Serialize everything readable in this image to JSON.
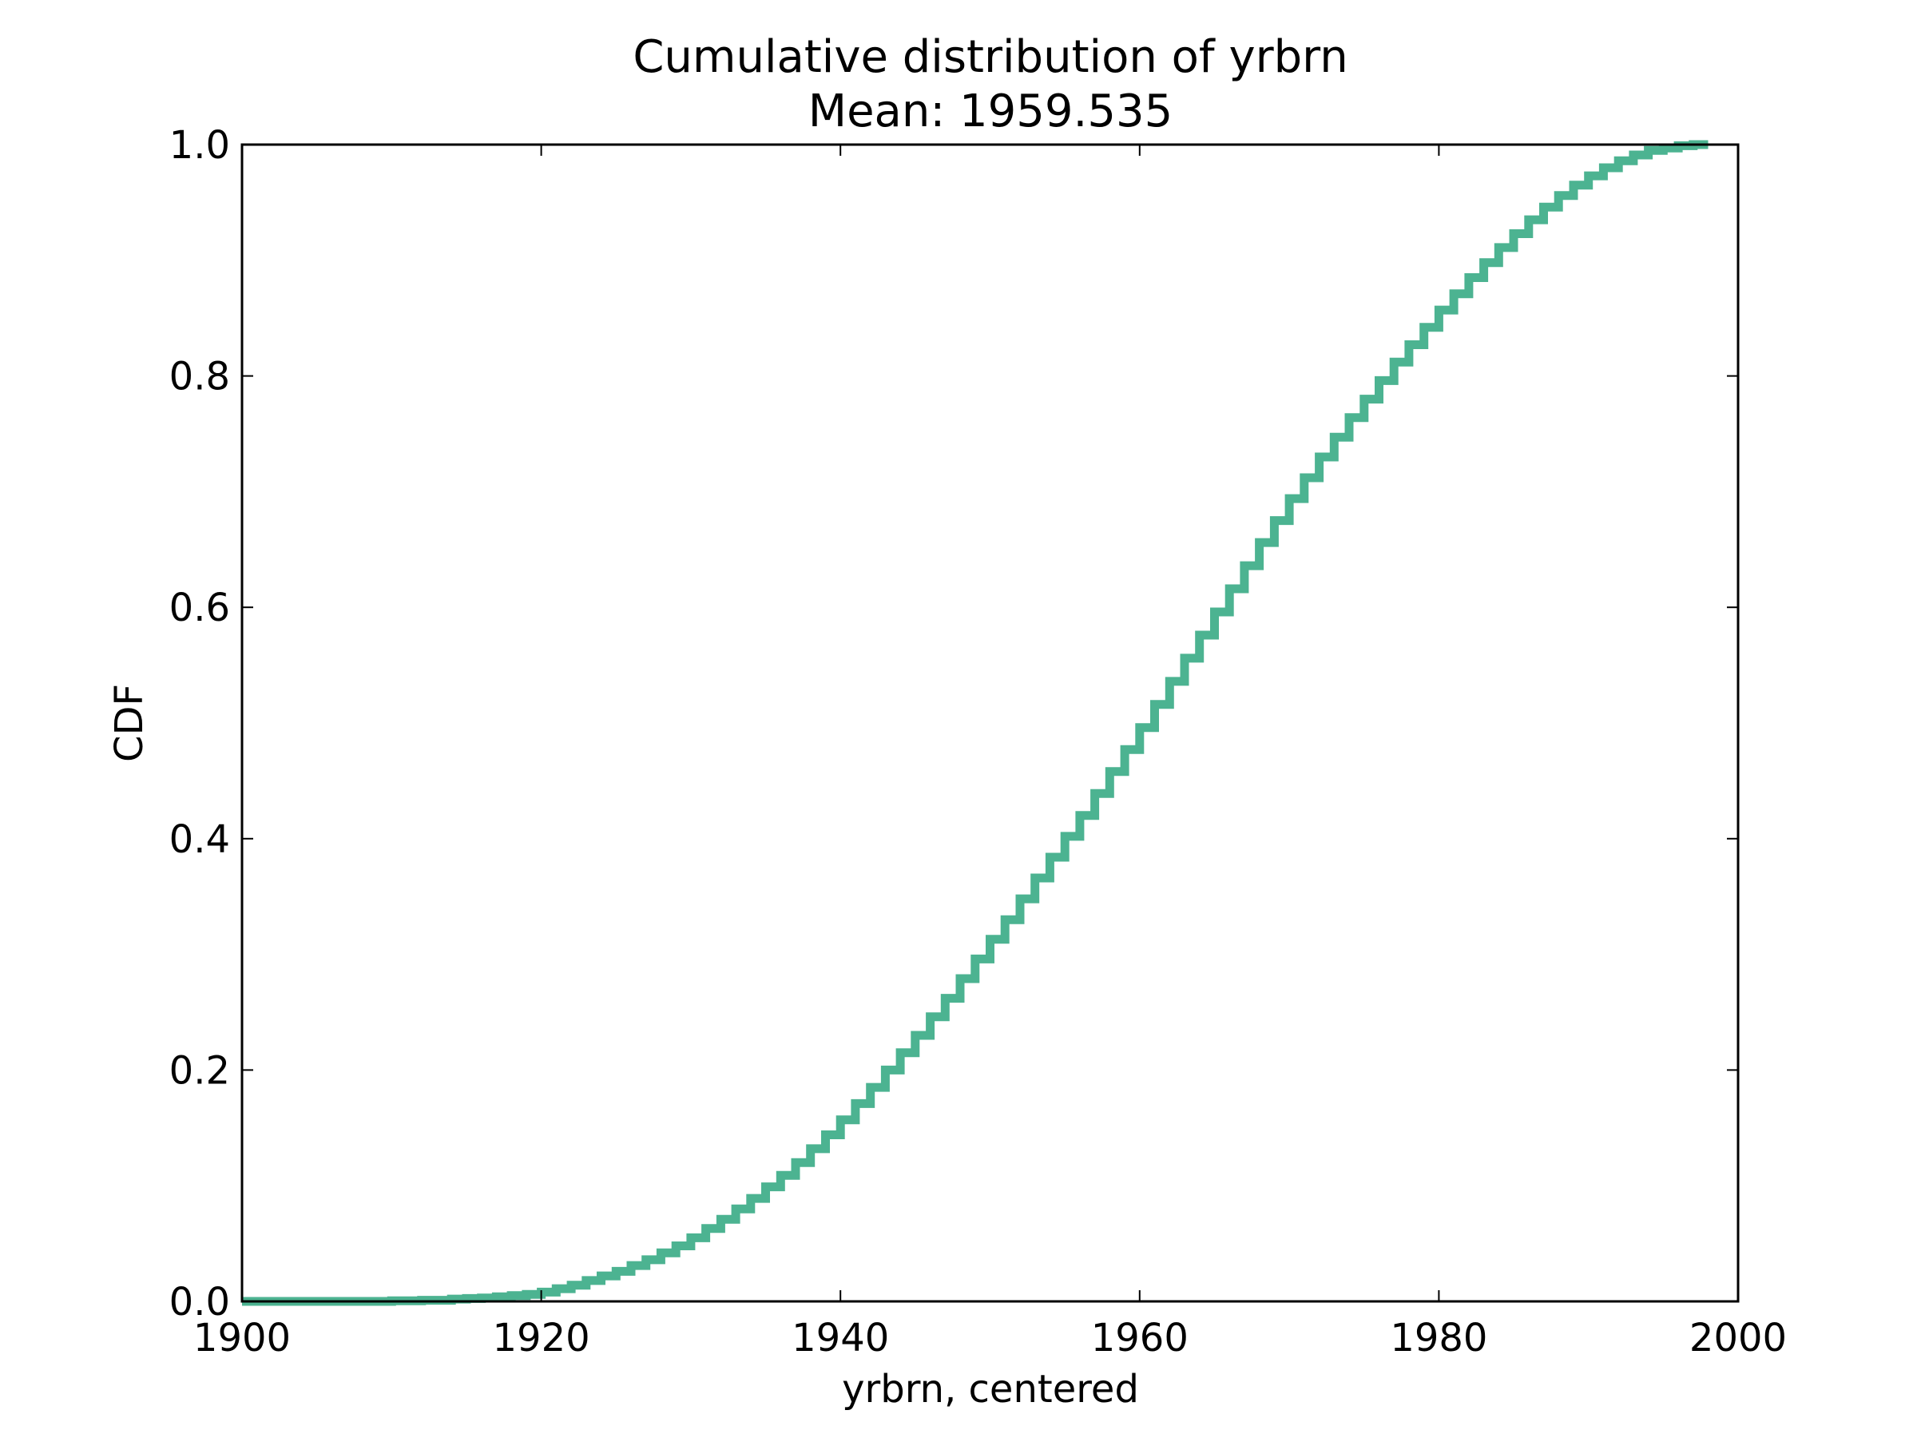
{
  "chart_data": {
    "type": "line",
    "step": true,
    "title": "Cumulative distribution of yrbrn",
    "subtitle": "Mean: 1959.535",
    "xlabel": "yrbrn, centered",
    "ylabel": "CDF",
    "xlim": [
      1900,
      2000
    ],
    "ylim": [
      0.0,
      1.0
    ],
    "xticks": [
      "1900",
      "1920",
      "1940",
      "1960",
      "1980",
      "2000"
    ],
    "yticks": [
      "0.0",
      "0.2",
      "0.4",
      "0.6",
      "0.8",
      "1.0"
    ],
    "grid": false,
    "legend": false,
    "series": [
      {
        "color": "#4cb391",
        "x": [
          1900,
          1905,
          1910,
          1912,
          1914,
          1915,
          1916,
          1917,
          1918,
          1919,
          1920,
          1921,
          1922,
          1923,
          1924,
          1925,
          1926,
          1927,
          1928,
          1929,
          1930,
          1931,
          1932,
          1933,
          1934,
          1935,
          1936,
          1937,
          1938,
          1939,
          1940,
          1941,
          1942,
          1943,
          1944,
          1945,
          1946,
          1947,
          1948,
          1949,
          1950,
          1951,
          1952,
          1953,
          1954,
          1955,
          1956,
          1957,
          1958,
          1959,
          1960,
          1961,
          1962,
          1963,
          1964,
          1965,
          1966,
          1967,
          1968,
          1969,
          1970,
          1971,
          1972,
          1973,
          1974,
          1975,
          1976,
          1977,
          1978,
          1979,
          1980,
          1981,
          1982,
          1983,
          1984,
          1985,
          1986,
          1987,
          1988,
          1989,
          1990,
          1991,
          1992,
          1993,
          1994,
          1995,
          1996,
          1997,
          1998
        ],
        "y": [
          0.0,
          0.0,
          0.0005,
          0.001,
          0.002,
          0.0025,
          0.003,
          0.004,
          0.005,
          0.006,
          0.008,
          0.011,
          0.014,
          0.018,
          0.022,
          0.026,
          0.031,
          0.036,
          0.042,
          0.048,
          0.055,
          0.063,
          0.071,
          0.08,
          0.089,
          0.099,
          0.109,
          0.12,
          0.132,
          0.144,
          0.157,
          0.171,
          0.185,
          0.2,
          0.215,
          0.23,
          0.246,
          0.262,
          0.279,
          0.296,
          0.313,
          0.33,
          0.348,
          0.366,
          0.384,
          0.402,
          0.42,
          0.439,
          0.458,
          0.477,
          0.496,
          0.516,
          0.536,
          0.556,
          0.576,
          0.596,
          0.616,
          0.636,
          0.656,
          0.675,
          0.694,
          0.712,
          0.73,
          0.747,
          0.764,
          0.78,
          0.796,
          0.812,
          0.827,
          0.842,
          0.857,
          0.871,
          0.885,
          0.898,
          0.911,
          0.923,
          0.935,
          0.946,
          0.956,
          0.965,
          0.973,
          0.98,
          0.986,
          0.991,
          0.995,
          0.997,
          0.999,
          1.0,
          1.0
        ]
      }
    ]
  }
}
